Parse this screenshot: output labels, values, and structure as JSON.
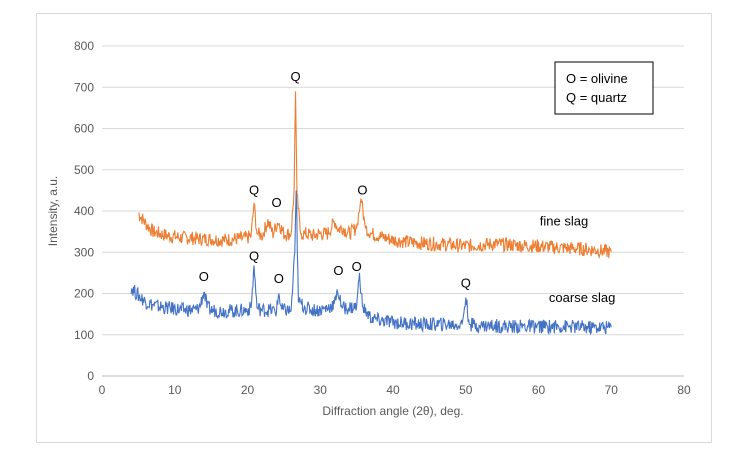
{
  "chart_data": {
    "type": "line",
    "xlabel": "Diffraction angle (2θ), deg.",
    "ylabel": "Intensity, a.u.",
    "xlim": [
      0,
      80
    ],
    "ylim": [
      0,
      800
    ],
    "xticks": [
      0,
      10,
      20,
      30,
      40,
      50,
      60,
      70,
      80
    ],
    "yticks": [
      0,
      100,
      200,
      300,
      400,
      500,
      600,
      700,
      800
    ],
    "grid": "horizontal",
    "legend_box": [
      "O = olivine",
      "Q = quartz"
    ],
    "legend_placement": "top-right",
    "series": [
      {
        "name": "fine slag",
        "color": "#ED7D31",
        "x": [
          5,
          6,
          7,
          8,
          9,
          10,
          11,
          12,
          13,
          14,
          15,
          16,
          17,
          18,
          19,
          20,
          20.5,
          20.9,
          21.3,
          22,
          22.8,
          23.5,
          24.2,
          25,
          26,
          26.4,
          26.6,
          26.8,
          27.3,
          28,
          29,
          30,
          31,
          32,
          32.5,
          33,
          34,
          35,
          35.6,
          36.2,
          37,
          38,
          39,
          40,
          42,
          44,
          46,
          48,
          50,
          52,
          54,
          56,
          58,
          60,
          62,
          64,
          66,
          68,
          70
        ],
        "values": [
          395,
          370,
          350,
          345,
          340,
          338,
          335,
          335,
          333,
          332,
          332,
          330,
          330,
          332,
          333,
          335,
          340,
          418,
          345,
          340,
          375,
          345,
          375,
          345,
          345,
          450,
          690,
          440,
          345,
          345,
          340,
          345,
          345,
          375,
          355,
          360,
          345,
          360,
          430,
          360,
          345,
          340,
          335,
          330,
          325,
          322,
          320,
          318,
          315,
          318,
          320,
          318,
          316,
          315,
          312,
          310,
          308,
          305,
          300
        ]
      },
      {
        "name": "coarse slag",
        "color": "#4472C4",
        "x": [
          4,
          5,
          6,
          7,
          8,
          9,
          10,
          11,
          12,
          13,
          13.5,
          14,
          14.5,
          15,
          16,
          17,
          18,
          19,
          20,
          20.5,
          20.9,
          21.3,
          22,
          23,
          24,
          24.3,
          24.7,
          25,
          26,
          26.5,
          26.7,
          27,
          28,
          29,
          30,
          31,
          32,
          32.3,
          33,
          34,
          35,
          35.4,
          35.8,
          36.5,
          37,
          38,
          40,
          42,
          44,
          46,
          48,
          49.5,
          50,
          50.5,
          52,
          54,
          56,
          58,
          60,
          62,
          64,
          66,
          68,
          70
        ],
        "values": [
          215,
          195,
          180,
          172,
          168,
          165,
          163,
          160,
          160,
          160,
          170,
          205,
          165,
          160,
          158,
          158,
          158,
          158,
          160,
          165,
          268,
          165,
          160,
          160,
          158,
          200,
          160,
          160,
          158,
          300,
          450,
          180,
          165,
          160,
          160,
          165,
          175,
          210,
          165,
          165,
          168,
          250,
          168,
          150,
          140,
          135,
          130,
          128,
          125,
          125,
          125,
          125,
          190,
          125,
          122,
          122,
          120,
          120,
          120,
          120,
          120,
          118,
          118,
          118
        ]
      }
    ],
    "series_labels": [
      {
        "text": "fine slag",
        "x": 63.5,
        "y": 365
      },
      {
        "text": "coarse slag",
        "x": 66,
        "y": 180
      }
    ],
    "annotations": [
      {
        "text": "Q",
        "x": 26.6,
        "y": 715
      },
      {
        "text": "Q",
        "x": 20.9,
        "y": 440
      },
      {
        "text": "O",
        "x": 24.0,
        "y": 410
      },
      {
        "text": "O",
        "x": 35.8,
        "y": 440
      },
      {
        "text": "O",
        "x": 14.0,
        "y": 230
      },
      {
        "text": "Q",
        "x": 20.9,
        "y": 280
      },
      {
        "text": "O",
        "x": 24.3,
        "y": 225
      },
      {
        "text": "O",
        "x": 32.5,
        "y": 245
      },
      {
        "text": "O",
        "x": 35.0,
        "y": 255
      },
      {
        "text": "Q",
        "x": 50.0,
        "y": 215
      }
    ]
  }
}
